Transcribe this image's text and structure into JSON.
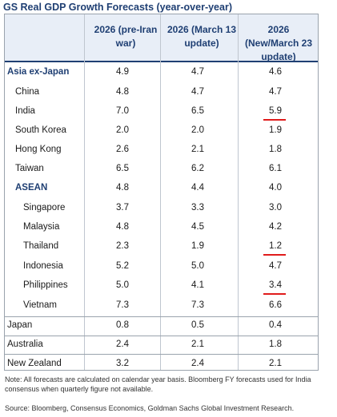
{
  "title": "GS Real GDP Growth Forecasts (year-over-year)",
  "columns": [
    "2026 (pre-Iran war)",
    "2026 (March 13 update)",
    "2026 (New/March 23 update)"
  ],
  "rows": [
    {
      "label": "Asia ex-Japan",
      "values": [
        "4.9",
        "4.7",
        "4.6"
      ]
    },
    {
      "label": "China",
      "values": [
        "4.8",
        "4.7",
        "4.7"
      ]
    },
    {
      "label": "India",
      "values": [
        "7.0",
        "6.5",
        "5.9"
      ]
    },
    {
      "label": "South Korea",
      "values": [
        "2.0",
        "2.0",
        "1.9"
      ]
    },
    {
      "label": "Hong Kong",
      "values": [
        "2.6",
        "2.1",
        "1.8"
      ]
    },
    {
      "label": "Taiwan",
      "values": [
        "6.5",
        "6.2",
        "6.1"
      ]
    },
    {
      "label": "ASEAN",
      "values": [
        "4.8",
        "4.4",
        "4.0"
      ]
    },
    {
      "label": "Singapore",
      "values": [
        "3.7",
        "3.3",
        "3.0"
      ]
    },
    {
      "label": "Malaysia",
      "values": [
        "4.8",
        "4.5",
        "4.2"
      ]
    },
    {
      "label": "Thailand",
      "values": [
        "2.3",
        "1.9",
        "1.2"
      ]
    },
    {
      "label": "Indonesia",
      "values": [
        "5.2",
        "5.0",
        "4.7"
      ]
    },
    {
      "label": "Philippines",
      "values": [
        "5.0",
        "4.1",
        "3.4"
      ]
    },
    {
      "label": "Vietnam",
      "values": [
        "7.3",
        "7.3",
        "6.6"
      ]
    },
    {
      "label": "Japan",
      "values": [
        "0.8",
        "0.5",
        "0.4"
      ]
    },
    {
      "label": "Australia",
      "values": [
        "2.4",
        "2.1",
        "1.8"
      ]
    },
    {
      "label": "New Zealand",
      "values": [
        "3.2",
        "2.4",
        "2.1"
      ]
    }
  ],
  "note": "Note: All forecasts are calculated on calendar year basis. Bloomberg FY forecasts used for India consensus when quarterly figure not available.",
  "source": "Source: Bloomberg, Consensus Economics, Goldman Sachs Global Investment Research.",
  "colors": {
    "header_text": "#1f3f73",
    "header_bg": "#e8eef7",
    "highlight_underline": "#e01b1b"
  }
}
